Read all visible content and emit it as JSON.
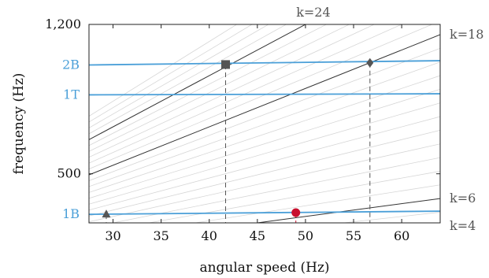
{
  "chart_data": {
    "type": "line",
    "title": "",
    "xlabel": "angular speed (Hz)",
    "ylabel": "frequency (Hz)",
    "xlim": [
      27.5,
      64
    ],
    "ylim": [
      270,
      1200
    ],
    "x_ticks": [
      30,
      35,
      40,
      45,
      50,
      55,
      60
    ],
    "x_tick_labels": [
      "30",
      "35",
      "40",
      "45",
      "50",
      "55",
      "60"
    ],
    "y_ticks": [
      500,
      1200
    ],
    "y_tick_labels": [
      "500",
      "1,200"
    ],
    "grid": false,
    "background_orders": [
      3,
      5,
      7,
      8,
      9,
      10,
      11,
      12,
      13,
      14,
      15,
      16,
      17,
      19,
      20,
      21,
      22,
      23,
      25,
      26,
      27,
      28
    ],
    "highlight_orders": [
      {
        "k": 4,
        "label": "k=4"
      },
      {
        "k": 6,
        "label": "k=6"
      },
      {
        "k": 18,
        "label": "k=18"
      },
      {
        "k": 24,
        "label": "k=24"
      }
    ],
    "bands": [
      {
        "name": "1B",
        "y": [
          310,
          325
        ],
        "color": "#4a9fd8"
      },
      {
        "name": "1T",
        "y": [
          870,
          875
        ],
        "color": "#4a9fd8"
      },
      {
        "name": "2B",
        "y": [
          1010,
          1030
        ],
        "color": "#4a9fd8"
      }
    ],
    "markers": [
      {
        "shape": "triangle",
        "x": 29.3,
        "y": 310,
        "color": "#555555"
      },
      {
        "shape": "square",
        "x": 41.7,
        "y": 1012,
        "color": "#555555"
      },
      {
        "shape": "diamond",
        "x": 56.7,
        "y": 1020,
        "color": "#555555"
      },
      {
        "shape": "circle",
        "x": 49.0,
        "y": 318,
        "color": "#c8102e"
      }
    ],
    "colors": {
      "band": "#4a9fd8",
      "order_line": "#333333",
      "background_line": "#d6d6d6",
      "marker": "#555555",
      "highlight_marker": "#c8102e"
    }
  }
}
